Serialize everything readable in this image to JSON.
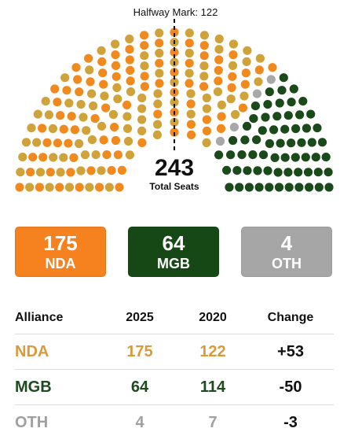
{
  "chart_data": {
    "type": "hemicycle",
    "title": "",
    "halfway_mark_label": "Halfway Mark: 122",
    "total_seats": 243,
    "total_label": "Total Seats",
    "series": [
      {
        "name": "NDA",
        "seats": 175,
        "color": "#f08a1e",
        "alt_color": "#cfa23a"
      },
      {
        "name": "MGB",
        "seats": 64,
        "color": "#1a4a1a"
      },
      {
        "name": "OTH",
        "seats": 4,
        "color": "#a8a8a8"
      }
    ]
  },
  "cards": [
    {
      "value": "175",
      "name": "NDA",
      "color": "#f5821f"
    },
    {
      "value": "64",
      "name": "MGB",
      "color": "#164816"
    },
    {
      "value": "4",
      "name": "OTH",
      "color": "#a6a6a6"
    }
  ],
  "table": {
    "headers": [
      "Alliance",
      "2025",
      "2020",
      "Change"
    ],
    "rows": [
      {
        "alliance": "NDA",
        "y2025": "175",
        "y2020": "122",
        "change": "+53",
        "color": "#d99a3a"
      },
      {
        "alliance": "MGB",
        "y2025": "64",
        "y2020": "114",
        "change": "-50",
        "color": "#1f4a1f"
      },
      {
        "alliance": "OTH",
        "y2025": "4",
        "y2020": "7",
        "change": "-3",
        "color": "#a0a0a0"
      }
    ]
  }
}
